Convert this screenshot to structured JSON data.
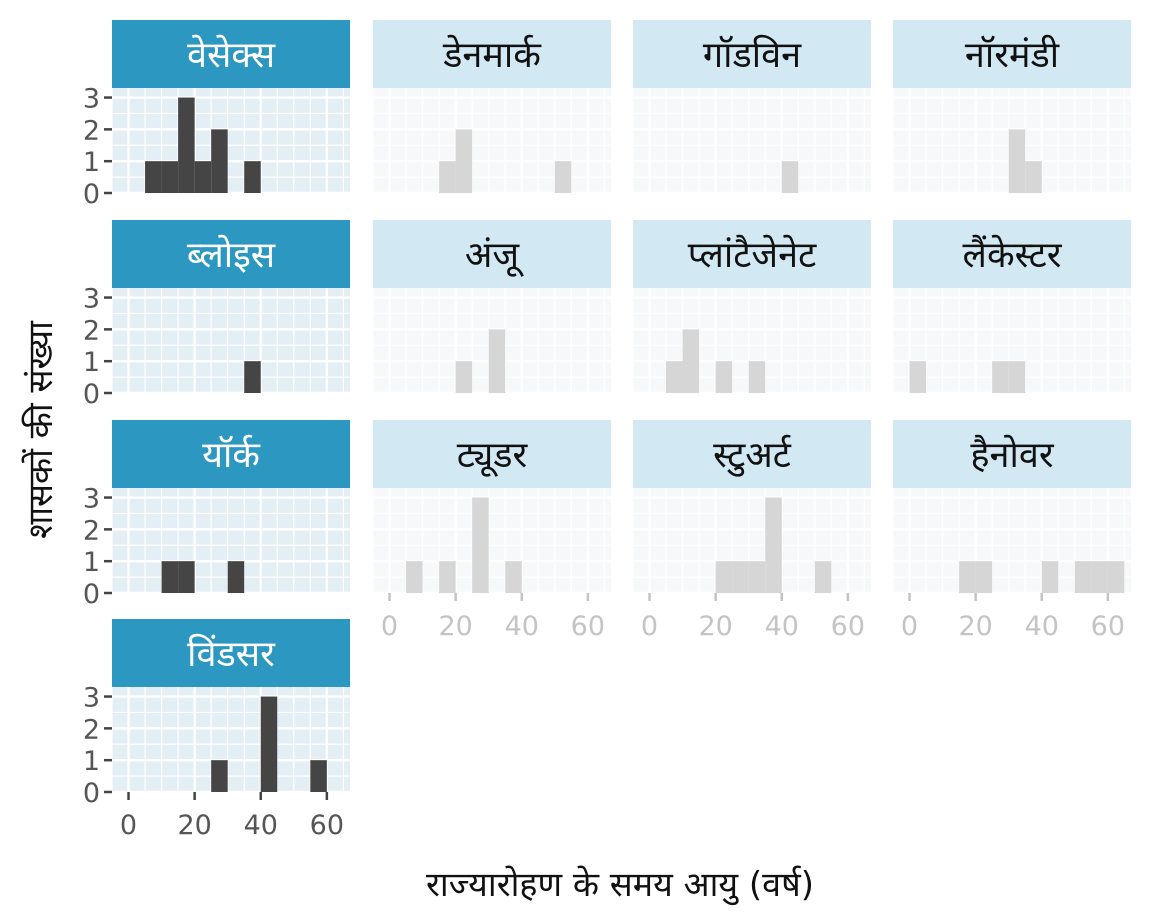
{
  "chart_data": {
    "type": "histogram-facets",
    "xlabel": "राज्यारोहण के समय आयु (वर्ष)",
    "ylabel": "शासकों की संख्या",
    "xlim": [
      -5,
      67
    ],
    "ylim": [
      0,
      3.3
    ],
    "x_ticks": [
      0,
      20,
      40,
      60
    ],
    "y_ticks": [
      0,
      1,
      2,
      3
    ],
    "bin_width": 5,
    "colors": {
      "highlight_strip": "#2c97c0",
      "muted_strip": "#d2e8f2",
      "highlight_bar": "#454545",
      "muted_bar": "#d6d6d6",
      "panel_bg": "#e4eef5",
      "muted_panel_bg": "#f6f8fa",
      "grid": "#ffffff",
      "tick_text": "#555555",
      "muted_tick_text": "#c4c4c4"
    },
    "facets": [
      {
        "name": "वेसेक्स",
        "highlight": true,
        "show_y": true,
        "show_x": false,
        "bins": [
          {
            "x0": 5,
            "x1": 10,
            "count": 1
          },
          {
            "x0": 10,
            "x1": 15,
            "count": 1
          },
          {
            "x0": 15,
            "x1": 20,
            "count": 3
          },
          {
            "x0": 20,
            "x1": 25,
            "count": 1
          },
          {
            "x0": 25,
            "x1": 30,
            "count": 2
          },
          {
            "x0": 35,
            "x1": 40,
            "count": 1
          }
        ]
      },
      {
        "name": "डेनमार्क",
        "highlight": false,
        "show_y": false,
        "show_x": false,
        "bins": [
          {
            "x0": 15,
            "x1": 20,
            "count": 1
          },
          {
            "x0": 20,
            "x1": 25,
            "count": 2
          },
          {
            "x0": 50,
            "x1": 55,
            "count": 1
          }
        ]
      },
      {
        "name": "गॉडविन",
        "highlight": false,
        "show_y": false,
        "show_x": false,
        "bins": [
          {
            "x0": 40,
            "x1": 45,
            "count": 1
          }
        ]
      },
      {
        "name": "नॉरमंडी",
        "highlight": false,
        "show_y": false,
        "show_x": false,
        "bins": [
          {
            "x0": 30,
            "x1": 35,
            "count": 2
          },
          {
            "x0": 35,
            "x1": 40,
            "count": 1
          }
        ]
      },
      {
        "name": "ब्लोइस",
        "highlight": true,
        "show_y": true,
        "show_x": false,
        "bins": [
          {
            "x0": 35,
            "x1": 40,
            "count": 1
          }
        ]
      },
      {
        "name": "अंजू",
        "highlight": false,
        "show_y": false,
        "show_x": false,
        "bins": [
          {
            "x0": 20,
            "x1": 25,
            "count": 1
          },
          {
            "x0": 30,
            "x1": 35,
            "count": 2
          }
        ]
      },
      {
        "name": "प्लांटैजेनेट",
        "highlight": false,
        "show_y": false,
        "show_x": false,
        "bins": [
          {
            "x0": 5,
            "x1": 10,
            "count": 1
          },
          {
            "x0": 10,
            "x1": 15,
            "count": 2
          },
          {
            "x0": 20,
            "x1": 25,
            "count": 1
          },
          {
            "x0": 30,
            "x1": 35,
            "count": 1
          }
        ]
      },
      {
        "name": "लैंकेस्टर",
        "highlight": false,
        "show_y": false,
        "show_x": false,
        "bins": [
          {
            "x0": 0,
            "x1": 5,
            "count": 1
          },
          {
            "x0": 25,
            "x1": 30,
            "count": 1
          },
          {
            "x0": 30,
            "x1": 35,
            "count": 1
          }
        ]
      },
      {
        "name": "यॉर्क",
        "highlight": true,
        "show_y": true,
        "show_x": false,
        "bins": [
          {
            "x0": 10,
            "x1": 15,
            "count": 1
          },
          {
            "x0": 15,
            "x1": 20,
            "count": 1
          },
          {
            "x0": 30,
            "x1": 35,
            "count": 1
          }
        ]
      },
      {
        "name": "ट्यूडर",
        "highlight": false,
        "show_y": false,
        "show_x": true,
        "bins": [
          {
            "x0": 5,
            "x1": 10,
            "count": 1
          },
          {
            "x0": 15,
            "x1": 20,
            "count": 1
          },
          {
            "x0": 25,
            "x1": 30,
            "count": 3
          },
          {
            "x0": 35,
            "x1": 40,
            "count": 1
          }
        ]
      },
      {
        "name": "स्टुअर्ट",
        "highlight": false,
        "show_y": false,
        "show_x": true,
        "bins": [
          {
            "x0": 20,
            "x1": 25,
            "count": 1
          },
          {
            "x0": 25,
            "x1": 30,
            "count": 1
          },
          {
            "x0": 30,
            "x1": 35,
            "count": 1
          },
          {
            "x0": 35,
            "x1": 40,
            "count": 3
          },
          {
            "x0": 50,
            "x1": 55,
            "count": 1
          }
        ]
      },
      {
        "name": "हैनोवर",
        "highlight": false,
        "show_y": false,
        "show_x": true,
        "bins": [
          {
            "x0": 15,
            "x1": 20,
            "count": 1
          },
          {
            "x0": 20,
            "x1": 25,
            "count": 1
          },
          {
            "x0": 40,
            "x1": 45,
            "count": 1
          },
          {
            "x0": 50,
            "x1": 55,
            "count": 1
          },
          {
            "x0": 55,
            "x1": 60,
            "count": 1
          },
          {
            "x0": 60,
            "x1": 65,
            "count": 1
          }
        ]
      },
      {
        "name": "विंडसर",
        "highlight": true,
        "show_y": true,
        "show_x": true,
        "bins": [
          {
            "x0": 25,
            "x1": 30,
            "count": 1
          },
          {
            "x0": 40,
            "x1": 45,
            "count": 3
          },
          {
            "x0": 55,
            "x1": 60,
            "count": 1
          }
        ]
      }
    ]
  }
}
